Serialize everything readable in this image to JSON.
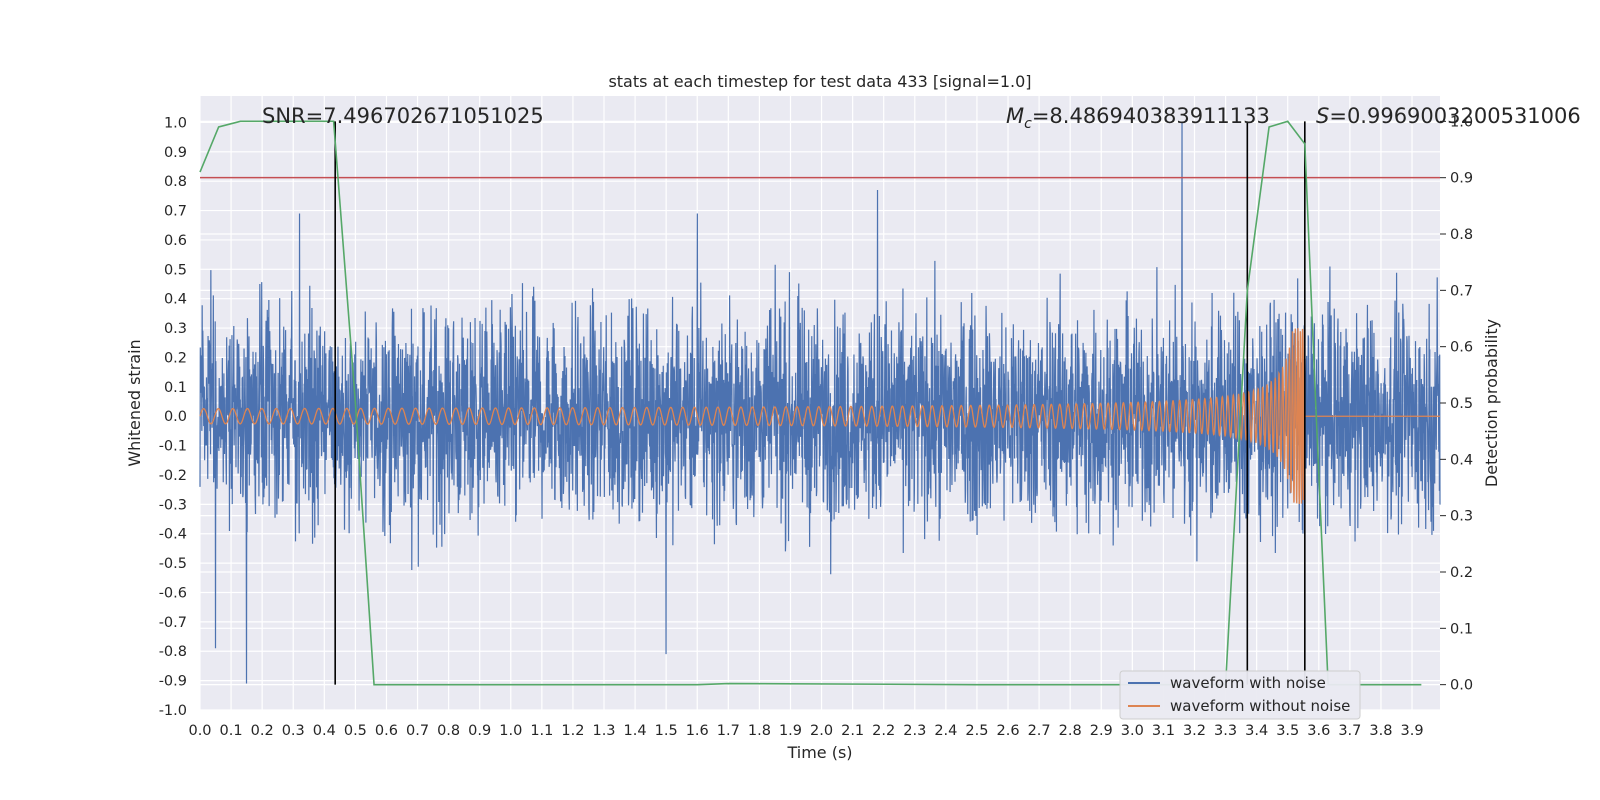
{
  "chart_data": {
    "type": "line",
    "title": "stats at each timestep for test data 433 [signal=1.0]",
    "xlabel": "Time (s)",
    "ylabel": "Whitened strain",
    "y2label": "Detection probability",
    "xlim": [
      0.0,
      3.99
    ],
    "ylim": [
      -1.0,
      1.09
    ],
    "y2lim": [
      -0.045,
      1.045
    ],
    "xticks": [
      "0.0",
      "0.1",
      "0.2",
      "0.3",
      "0.4",
      "0.5",
      "0.6",
      "0.7",
      "0.8",
      "0.9",
      "1.0",
      "1.1",
      "1.2",
      "1.3",
      "1.4",
      "1.5",
      "1.6",
      "1.7",
      "1.8",
      "1.9",
      "2.0",
      "2.1",
      "2.2",
      "2.3",
      "2.4",
      "2.5",
      "2.6",
      "2.7",
      "2.8",
      "2.9",
      "3.0",
      "3.1",
      "3.2",
      "3.3",
      "3.4",
      "3.5",
      "3.6",
      "3.7",
      "3.8",
      "3.9"
    ],
    "yticks": [
      "-1.0",
      "-0.9",
      "-0.8",
      "-0.7",
      "-0.6",
      "-0.5",
      "-0.4",
      "-0.3",
      "-0.2",
      "-0.1",
      "0.0",
      "0.1",
      "0.2",
      "0.3",
      "0.4",
      "0.5",
      "0.6",
      "0.7",
      "0.8",
      "0.9",
      "1.0"
    ],
    "y2ticks": [
      "0.0",
      "0.1",
      "0.2",
      "0.3",
      "0.4",
      "0.5",
      "0.6",
      "0.7",
      "0.8",
      "0.9",
      "1.0"
    ],
    "annotations": {
      "snr": "SNR=7.496702671051025",
      "mc_symbol": "M",
      "mc_sub": "c",
      "mc_value": "=8.486940383911133",
      "s_symbol": "S",
      "s_value": "=0.9969003200531006"
    },
    "grid": true,
    "legend_position": "lower-right",
    "colors": {
      "noise": "#4c72b0",
      "clean": "#dd8452",
      "prob": "#55a868",
      "threshold": "#c44e52",
      "marker": "#000000",
      "background": "#eaeaf2"
    },
    "threshold_probability": 0.9,
    "vertical_markers_x": [
      0.435,
      3.37,
      3.555
    ],
    "series": [
      {
        "name": "waveform with noise",
        "kind": "noise",
        "sigma": 0.18,
        "peaks": [
          [
            3.16,
            1.0
          ],
          [
            2.18,
            0.77
          ],
          [
            0.32,
            0.69
          ],
          [
            1.6,
            0.69
          ],
          [
            0.15,
            -0.91
          ],
          [
            1.5,
            -0.81
          ],
          [
            0.05,
            -0.79
          ]
        ]
      },
      {
        "name": "waveform without noise",
        "kind": "chirp",
        "merger_time": 3.555,
        "amplitude_start": 0.025,
        "amplitude_peak": 0.3
      },
      {
        "kind": "probability",
        "axis": "right",
        "x": [
          0.0,
          0.06,
          0.13,
          0.2,
          0.3,
          0.43,
          0.5,
          0.56,
          1.0,
          1.6,
          1.7,
          2.5,
          3.0,
          3.3,
          3.37,
          3.44,
          3.5,
          3.555,
          3.59,
          3.63,
          3.7,
          3.93
        ],
        "y": [
          0.91,
          0.99,
          1.0,
          1.0,
          1.0,
          1.0,
          0.5,
          0.0,
          0.0,
          0.0,
          0.002,
          0.0,
          0.0,
          0.0,
          0.7,
          0.99,
          1.0,
          0.96,
          0.5,
          0.0,
          0.0,
          0.0
        ]
      }
    ]
  }
}
